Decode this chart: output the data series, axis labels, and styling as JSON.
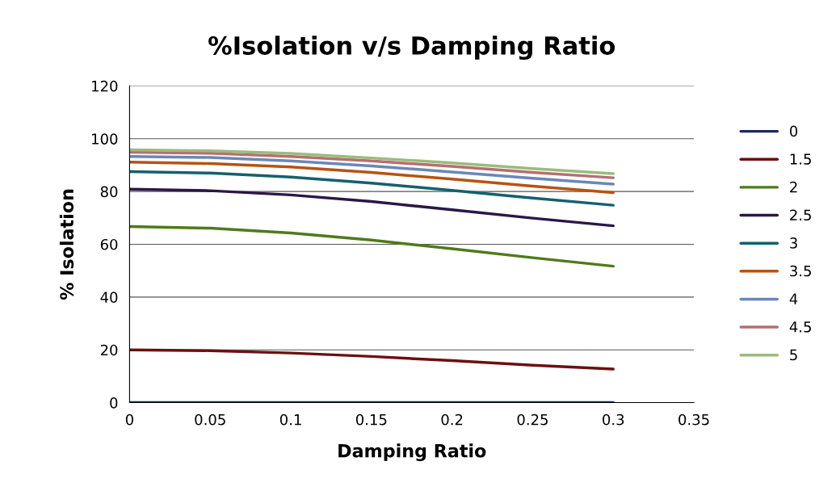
{
  "chart_data": {
    "type": "line",
    "title": "%Isolation v/s Damping Ratio",
    "xlabel": "Damping Ratio",
    "ylabel": "% Isolation",
    "x": [
      0,
      0.05,
      0.1,
      0.15,
      0.2,
      0.25,
      0.3
    ],
    "series": [
      {
        "name": "0",
        "color": "#1f2a5c",
        "values": [
          0,
          0,
          0,
          0,
          0,
          0,
          0
        ]
      },
      {
        "name": "1.5",
        "color": "#6b1010",
        "values": [
          20,
          19.7,
          18.8,
          17.5,
          15.9,
          14.2,
          12.7
        ]
      },
      {
        "name": "2",
        "color": "#4f7a1a",
        "values": [
          66.7,
          66.1,
          64.3,
          61.6,
          58.3,
          54.9,
          51.7
        ]
      },
      {
        "name": "2.5",
        "color": "#2a1748",
        "values": [
          80.9,
          80.3,
          78.7,
          76.2,
          73.1,
          69.9,
          67.0
        ]
      },
      {
        "name": "3",
        "color": "#14606e",
        "values": [
          87.5,
          87.0,
          85.5,
          83.2,
          80.4,
          77.5,
          74.8
        ]
      },
      {
        "name": "3.5",
        "color": "#b85310",
        "values": [
          91.1,
          90.6,
          89.3,
          87.2,
          84.7,
          82.0,
          79.6
        ]
      },
      {
        "name": "4",
        "color": "#6a87b8",
        "values": [
          93.3,
          92.9,
          91.6,
          89.7,
          87.4,
          85.0,
          82.8
        ]
      },
      {
        "name": "4.5",
        "color": "#b56f6e",
        "values": [
          94.9,
          94.5,
          93.3,
          91.6,
          89.5,
          87.2,
          85.2
        ]
      },
      {
        "name": "5",
        "color": "#9bbb7c",
        "values": [
          95.8,
          95.4,
          94.4,
          92.7,
          90.8,
          88.7,
          86.8
        ]
      }
    ],
    "xlim": [
      0,
      0.35
    ],
    "xticks": [
      0,
      0.05,
      0.1,
      0.15,
      0.2,
      0.25,
      0.3,
      0.35
    ],
    "ylim": [
      0,
      120
    ],
    "yticks": [
      0,
      20,
      40,
      60,
      80,
      100,
      120
    ],
    "grid": "y",
    "legend": "right",
    "line_style": "solid",
    "marker": "none"
  }
}
